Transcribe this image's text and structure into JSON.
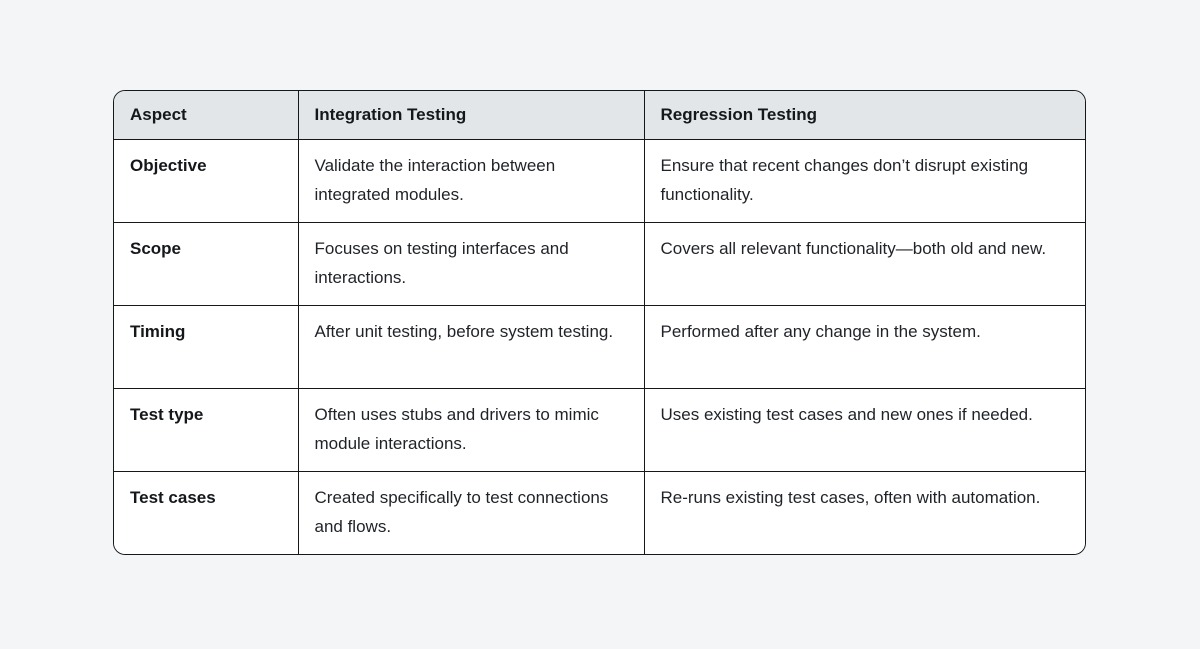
{
  "table": {
    "headers": [
      "Aspect",
      "Integration Testing",
      "Regression Testing"
    ],
    "rows": [
      [
        "Objective",
        "Validate the interaction between integrated modules.",
        "Ensure that recent changes don’t disrupt existing functionality."
      ],
      [
        "Scope",
        "Focuses on testing interfaces and interactions.",
        "Covers all relevant functionality—both old and new."
      ],
      [
        "Timing",
        "After unit testing, before system testing.",
        "Performed after any change in the system."
      ],
      [
        "Test type",
        "Often uses stubs and drivers to mimic module interactions.",
        "Uses existing test cases and new ones if needed."
      ],
      [
        "Test cases",
        "Created specifically to test connections and flows.",
        "Re-runs existing test cases, often with automation."
      ]
    ]
  },
  "colors": {
    "page_background": "#f3f5f6",
    "header_background": "#e3e6e8",
    "cell_background": "#ffffff",
    "border": "#14181b",
    "text": "#1f2328"
  }
}
